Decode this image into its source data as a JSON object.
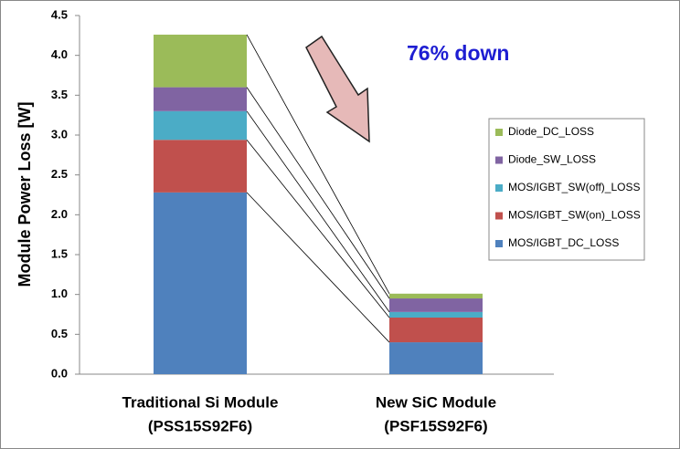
{
  "chart_data": {
    "type": "stacked_bar",
    "y_label": "Module Power Loss [W]",
    "annotation": "76% down",
    "categories": [
      "Traditional Si Module",
      "New SiC Module"
    ],
    "category_codes": [
      "(PSS15S92F6)",
      "(PSF15S92F6)"
    ],
    "series": [
      {
        "name": "MOS/IGBT_DC_LOSS",
        "color": "#4f81bd",
        "values": [
          2.28,
          0.4
        ]
      },
      {
        "name": "MOS/IGBT_SW(on)_LOSS",
        "color": "#c0504d",
        "values": [
          0.66,
          0.31
        ]
      },
      {
        "name": "MOS/IGBT_SW(off)_LOSS",
        "color": "#4bacc6",
        "values": [
          0.36,
          0.07
        ]
      },
      {
        "name": "Diode_SW_LOSS",
        "color": "#8064a2",
        "values": [
          0.3,
          0.17
        ]
      },
      {
        "name": "Diode_DC_LOSS",
        "color": "#9bbb59",
        "values": [
          0.66,
          0.06
        ]
      }
    ],
    "ylim": [
      0,
      4.5
    ],
    "yticks": [
      {
        "value": 0,
        "label": "0.0"
      },
      0.5,
      {
        "value": 1,
        "label": "1.0"
      },
      1.5,
      {
        "value": 2,
        "label": "2.0"
      },
      2.5,
      {
        "value": 3,
        "label": "3.0"
      },
      3.5,
      {
        "value": 4,
        "label": "4.0"
      },
      4.5
    ],
    "legend": "right"
  }
}
